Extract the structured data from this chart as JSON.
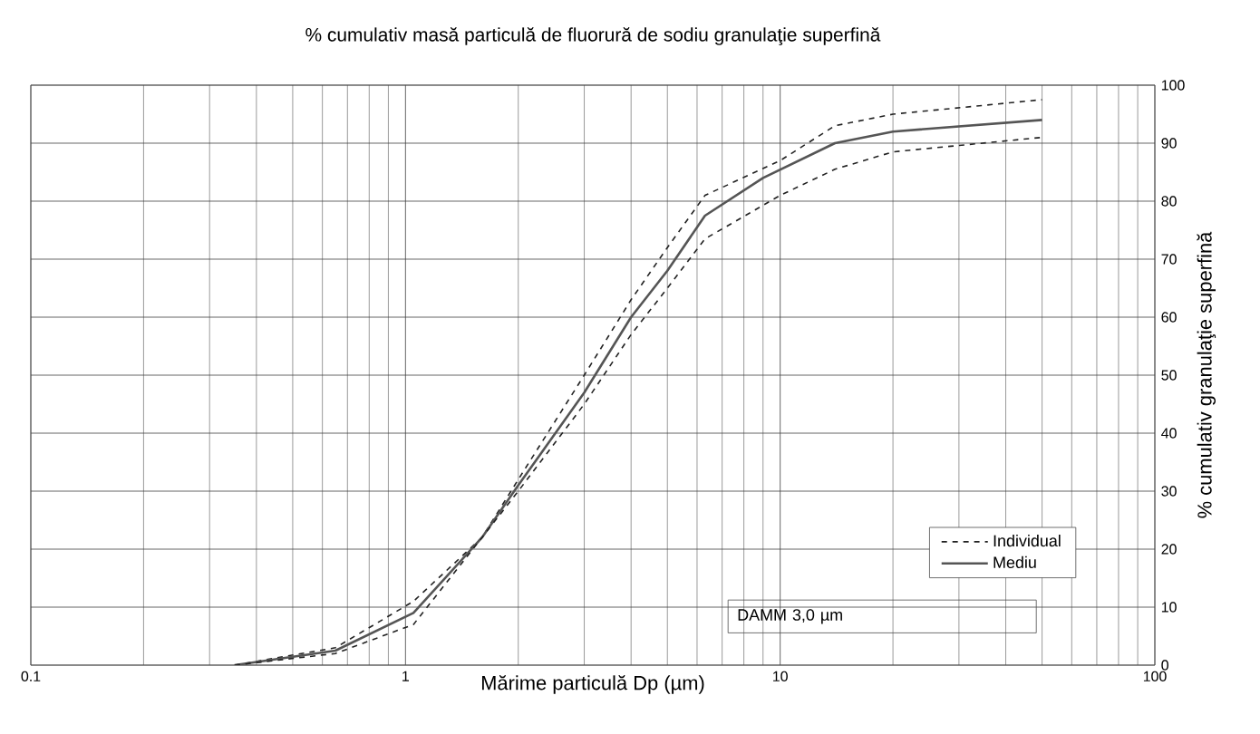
{
  "chart_data": {
    "type": "line",
    "title": "% cumulativ masă particulă de fluorură de sodiu granulaţie superfină",
    "xlabel": "Mărime particulă Dp (µm)",
    "ylabel": "% cumulativ granulaţie superfină",
    "log": "x",
    "xlim": [
      0.1,
      100
    ],
    "xticks": [
      0.1,
      1,
      10,
      100
    ],
    "ylim": [
      0,
      100
    ],
    "yticks": [
      0,
      10,
      20,
      30,
      40,
      50,
      60,
      70,
      80,
      90,
      100
    ],
    "grid": true,
    "legend": "bottom right",
    "annotations": [
      "DAMM 3,0 µm"
    ],
    "series": [
      {
        "name": "Individual",
        "color": "#222222",
        "line_style": "dashed",
        "x": [
          0.35,
          0.65,
          1.05,
          1.6,
          2,
          3,
          4,
          5,
          6.3,
          10,
          14,
          20,
          50
        ],
        "values": [
          0,
          3,
          11,
          22,
          32,
          50,
          63,
          72,
          81,
          87,
          93,
          95,
          97.5
        ]
      },
      {
        "name": "Mediu",
        "color": "#555555",
        "line_style": "solid",
        "x": [
          0.35,
          0.65,
          1.05,
          1.6,
          2,
          3,
          4,
          5,
          6.3,
          9,
          14,
          20,
          50
        ],
        "values": [
          0,
          2.5,
          9,
          22,
          31,
          47,
          60,
          68,
          77.5,
          84,
          90,
          92,
          94
        ]
      },
      {
        "color": "#222222",
        "line_style": "dashed",
        "x": [
          0.35,
          0.65,
          1.05,
          1.6,
          2,
          3,
          4,
          5,
          6.3,
          10,
          14,
          20,
          50
        ],
        "values": [
          0,
          2,
          7,
          22,
          30,
          45,
          57,
          65,
          73.5,
          81,
          85.5,
          88.5,
          91
        ]
      }
    ]
  }
}
